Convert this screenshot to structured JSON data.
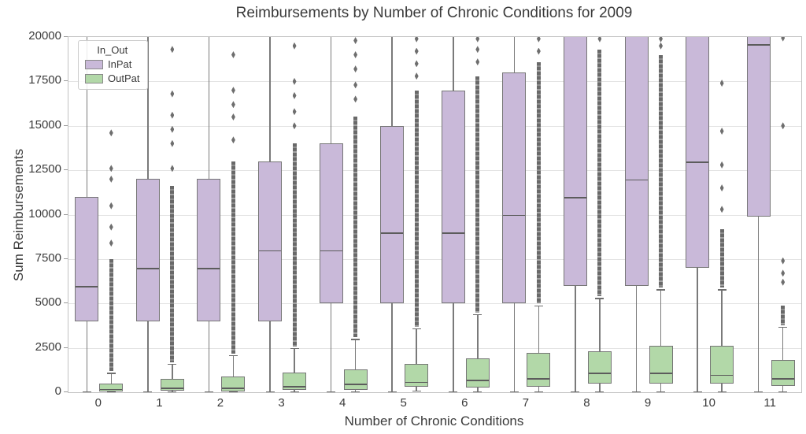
{
  "title": "Reimbursements by Number of Chronic Conditions for 2009",
  "legend": {
    "title": "In_Out",
    "items": [
      {
        "label": "InPat",
        "color": "#c9b9d9"
      },
      {
        "label": "OutPat",
        "color": "#b2d8a8"
      }
    ]
  },
  "colors": {
    "box_edge": "#767676",
    "median": "#5c5c5c",
    "whisker": "#7a7a7a",
    "outlier": "#6e6e6e",
    "grid": "#e3e3e3",
    "spine": "#c2c2c2",
    "text": "#3a3a3a"
  },
  "chart_data": {
    "type": "boxplot",
    "title": "Reimbursements by Number of Chronic Conditions for 2009",
    "xlabel": "Number of Chronic Conditions",
    "ylabel": "Sum Reimbursements",
    "ylim": [
      0,
      20000
    ],
    "yticks": [
      0,
      2500,
      5000,
      7500,
      10000,
      12500,
      15000,
      17500,
      20000
    ],
    "categories": [
      "0",
      "1",
      "2",
      "3",
      "4",
      "5",
      "6",
      "7",
      "8",
      "9",
      "10",
      "11"
    ],
    "grid": "horizontal",
    "legend_position": "upper left",
    "series": [
      {
        "name": "InPat",
        "color": "#c9b9d9",
        "boxes": [
          {
            "lo": 0,
            "q1": 4000,
            "med": 6000,
            "q3": 11000,
            "hi": 20000,
            "hi_capped": false,
            "clipped_top": true,
            "dense_to": null,
            "outliers": []
          },
          {
            "lo": 0,
            "q1": 4000,
            "med": 7000,
            "q3": 12000,
            "hi": 20000,
            "hi_capped": false,
            "clipped_top": true,
            "dense_to": null,
            "outliers": []
          },
          {
            "lo": 0,
            "q1": 4000,
            "med": 7000,
            "q3": 12000,
            "hi": 20000,
            "hi_capped": false,
            "clipped_top": true,
            "dense_to": null,
            "outliers": []
          },
          {
            "lo": 0,
            "q1": 4000,
            "med": 8000,
            "q3": 13000,
            "hi": 20000,
            "hi_capped": false,
            "clipped_top": true,
            "dense_to": null,
            "outliers": []
          },
          {
            "lo": 0,
            "q1": 5000,
            "med": 8000,
            "q3": 14000,
            "hi": 20000,
            "hi_capped": false,
            "clipped_top": true,
            "dense_to": null,
            "outliers": []
          },
          {
            "lo": 0,
            "q1": 5000,
            "med": 9000,
            "q3": 15000,
            "hi": 20000,
            "hi_capped": false,
            "clipped_top": true,
            "dense_to": null,
            "outliers": []
          },
          {
            "lo": 0,
            "q1": 5000,
            "med": 9000,
            "q3": 17000,
            "hi": 20000,
            "hi_capped": false,
            "clipped_top": true,
            "dense_to": null,
            "outliers": []
          },
          {
            "lo": 0,
            "q1": 5000,
            "med": 10000,
            "q3": 18000,
            "hi": 20000,
            "hi_capped": false,
            "clipped_top": true,
            "dense_to": null,
            "outliers": []
          },
          {
            "lo": 0,
            "q1": 6000,
            "med": 11000,
            "q3": 20500,
            "hi": 20500,
            "hi_capped": false,
            "clipped_top": true,
            "dense_to": null,
            "outliers": []
          },
          {
            "lo": 0,
            "q1": 6000,
            "med": 12000,
            "q3": 20500,
            "hi": 20500,
            "hi_capped": false,
            "clipped_top": true,
            "dense_to": null,
            "outliers": []
          },
          {
            "lo": 0,
            "q1": 7000,
            "med": 13000,
            "q3": 20500,
            "hi": 20500,
            "hi_capped": false,
            "clipped_top": true,
            "dense_to": null,
            "outliers": []
          },
          {
            "lo": 0,
            "q1": 9900,
            "med": 19600,
            "q3": 20500,
            "hi": 20500,
            "hi_capped": false,
            "clipped_top": true,
            "dense_to": null,
            "outliers": []
          }
        ]
      },
      {
        "name": "OutPat",
        "color": "#b2d8a8",
        "boxes": [
          {
            "lo": 0,
            "q1": 50,
            "med": 200,
            "q3": 500,
            "hi": 1100,
            "hi_capped": true,
            "clipped_top": false,
            "dense_to": 7500,
            "outliers": [
              8400,
              9300,
              10500,
              12000,
              12600,
              14600
            ]
          },
          {
            "lo": 0,
            "q1": 100,
            "med": 270,
            "q3": 750,
            "hi": 1600,
            "hi_capped": true,
            "clipped_top": false,
            "dense_to": 11600,
            "outliers": [
              12600,
              14000,
              14800,
              15600,
              16800,
              19300
            ]
          },
          {
            "lo": 0,
            "q1": 50,
            "med": 250,
            "q3": 900,
            "hi": 2100,
            "hi_capped": true,
            "clipped_top": false,
            "dense_to": 13000,
            "outliers": [
              14200,
              15500,
              16200,
              17000,
              19000
            ]
          },
          {
            "lo": 0,
            "q1": 150,
            "med": 350,
            "q3": 1100,
            "hi": 2500,
            "hi_capped": true,
            "clipped_top": false,
            "dense_to": 14000,
            "outliers": [
              15000,
              15800,
              16700,
              17500,
              19500
            ]
          },
          {
            "lo": 0,
            "q1": 150,
            "med": 500,
            "q3": 1300,
            "hi": 3000,
            "hi_capped": true,
            "clipped_top": false,
            "dense_to": 15500,
            "outliers": [
              16500,
              17300,
              18200,
              19000,
              19800
            ]
          },
          {
            "lo": 100,
            "q1": 300,
            "med": 600,
            "q3": 1600,
            "hi": 3600,
            "hi_capped": true,
            "clipped_top": false,
            "dense_to": 17000,
            "outliers": [
              17800,
              18500,
              19200,
              19900
            ]
          },
          {
            "lo": 0,
            "q1": 250,
            "med": 700,
            "q3": 1900,
            "hi": 4400,
            "hi_capped": true,
            "clipped_top": false,
            "dense_to": 17800,
            "outliers": [
              18600,
              19300,
              19900
            ]
          },
          {
            "lo": 0,
            "q1": 300,
            "med": 800,
            "q3": 2200,
            "hi": 4900,
            "hi_capped": true,
            "clipped_top": false,
            "dense_to": 18600,
            "outliers": [
              19200,
              19900
            ]
          },
          {
            "lo": 0,
            "q1": 500,
            "med": 1100,
            "q3": 2300,
            "hi": 5300,
            "hi_capped": true,
            "clipped_top": false,
            "dense_to": 19300,
            "outliers": [
              19900
            ]
          },
          {
            "lo": 0,
            "q1": 500,
            "med": 1100,
            "q3": 2600,
            "hi": 5800,
            "hi_capped": true,
            "clipped_top": false,
            "dense_to": 19000,
            "outliers": [
              19500,
              19900
            ]
          },
          {
            "lo": 0,
            "q1": 500,
            "med": 1000,
            "q3": 2600,
            "hi": 5800,
            "hi_capped": true,
            "clipped_top": false,
            "dense_to": 9200,
            "outliers": [
              10300,
              11500,
              12800,
              14700,
              17400
            ]
          },
          {
            "lo": 0,
            "q1": 350,
            "med": 800,
            "q3": 1800,
            "hi": 3700,
            "hi_capped": true,
            "clipped_top": false,
            "dense_to": 4900,
            "outliers": [
              6200,
              6700,
              7400,
              15000,
              19950
            ]
          }
        ]
      }
    ]
  }
}
